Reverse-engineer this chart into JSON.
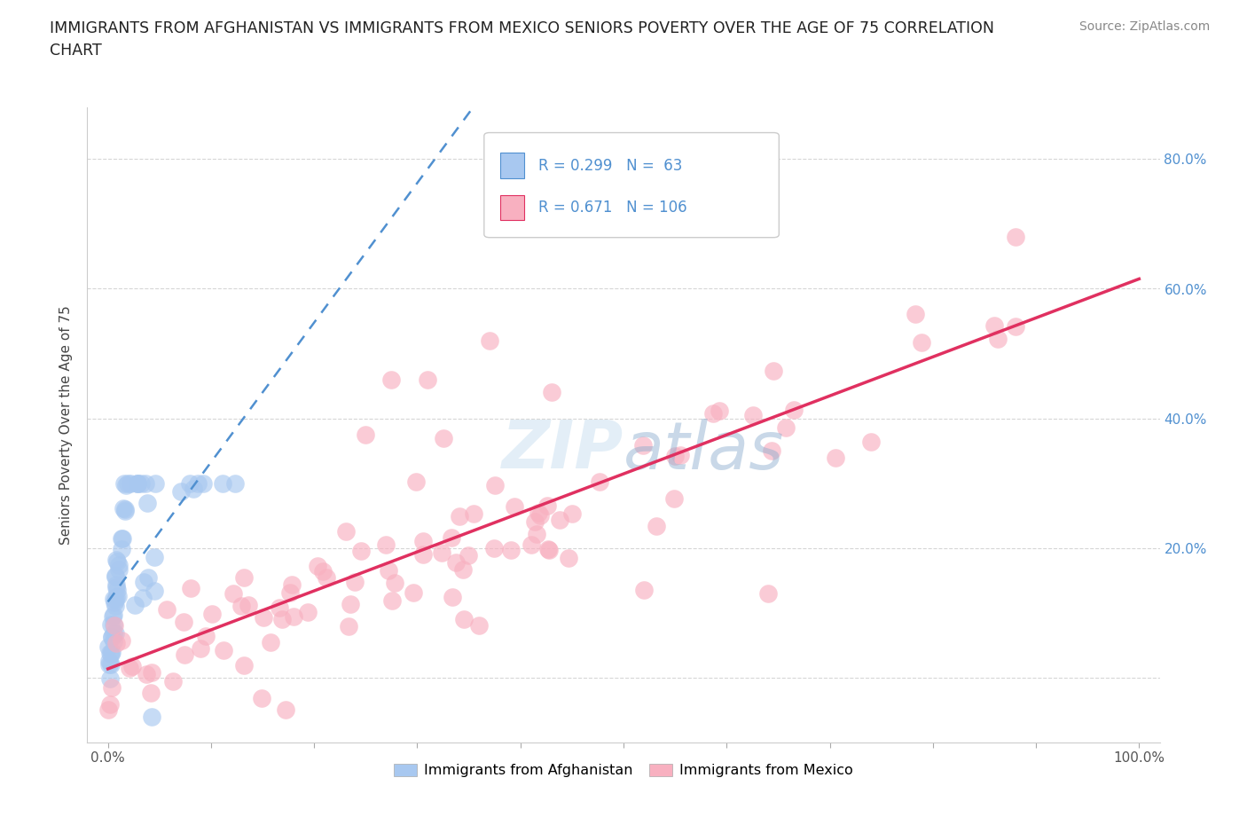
{
  "title": "IMMIGRANTS FROM AFGHANISTAN VS IMMIGRANTS FROM MEXICO SENIORS POVERTY OVER THE AGE OF 75 CORRELATION\nCHART",
  "ylabel": "Seniors Poverty Over the Age of 75",
  "source": "Source: ZipAtlas.com",
  "watermark": "ZIPatlas",
  "afghanistan_R": 0.299,
  "afghanistan_N": 63,
  "mexico_R": 0.671,
  "mexico_N": 106,
  "afghanistan_fill": "#a8c8f0",
  "mexico_fill": "#f8b0c0",
  "afghanistan_line_color": "#5090d0",
  "mexico_line_color": "#e03060",
  "right_axis_color": "#5090d0",
  "grid_color": "#cccccc",
  "background_color": "#ffffff",
  "xlim": [
    -0.02,
    1.02
  ],
  "ylim": [
    -0.1,
    0.88
  ],
  "x_ticks": [
    0.0,
    0.1,
    0.2,
    0.3,
    0.4,
    0.5,
    0.6,
    0.7,
    0.8,
    0.9,
    1.0
  ],
  "x_tick_labels": [
    "0.0%",
    "",
    "",
    "",
    "",
    "",
    "",
    "",
    "",
    "",
    "100.0%"
  ],
  "y_ticks": [
    0.0,
    0.2,
    0.4,
    0.6,
    0.8
  ],
  "y_tick_labels": [
    "",
    "20.0%",
    "40.0%",
    "60.0%",
    "80.0%"
  ]
}
